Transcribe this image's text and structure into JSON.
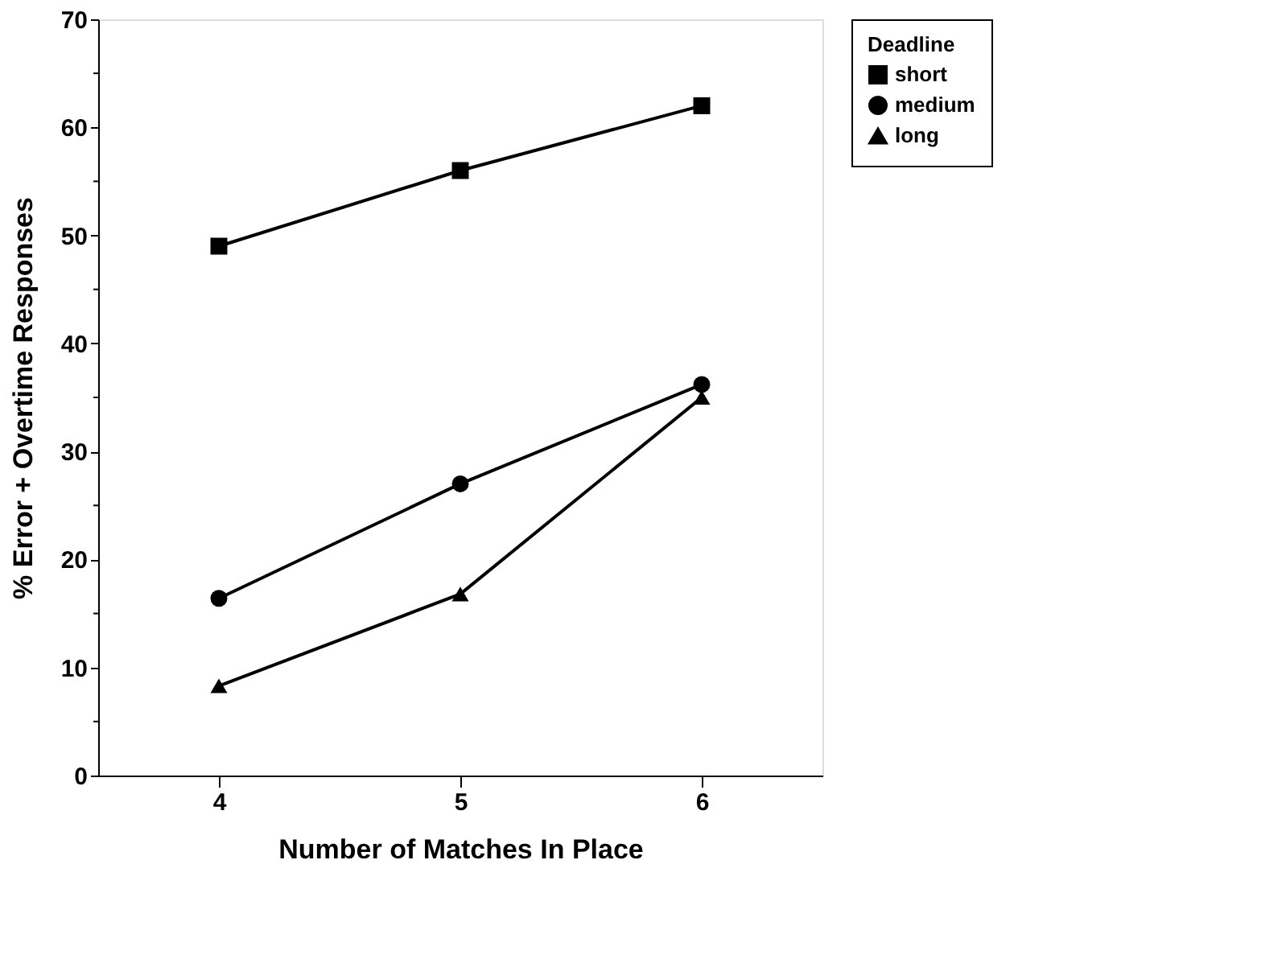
{
  "chart_data": {
    "type": "line",
    "xlabel": "Number of Matches In Place",
    "ylabel": "% Error + Overtime Responses",
    "legend_title": "Deadline",
    "x": [
      4,
      5,
      6
    ],
    "series": [
      {
        "name": "short",
        "color": "#000000",
        "marker": "square",
        "values": [
          49,
          56,
          62
        ]
      },
      {
        "name": "medium",
        "color": "#000000",
        "marker": "circle",
        "values": [
          16.4,
          27,
          36.2
        ]
      },
      {
        "name": "long",
        "color": "#000000",
        "marker": "triangle",
        "values": [
          8.3,
          16.8,
          35
        ]
      }
    ],
    "xlim": [
      3.5,
      6.5
    ],
    "xticks": [
      4,
      5,
      6
    ],
    "ylim": [
      0,
      70
    ],
    "yticks": [
      0,
      {
        "value": 5,
        "label": null
      },
      10,
      {
        "value": 15,
        "label": null
      },
      20,
      {
        "value": 25,
        "label": null
      },
      30,
      {
        "value": 35,
        "label": null
      },
      40,
      {
        "value": 45,
        "label": null
      },
      50,
      {
        "value": 55,
        "label": null
      },
      60,
      {
        "value": 65,
        "label": null
      },
      70
    ],
    "grid": false,
    "legend": "right",
    "line_style": "solid"
  }
}
